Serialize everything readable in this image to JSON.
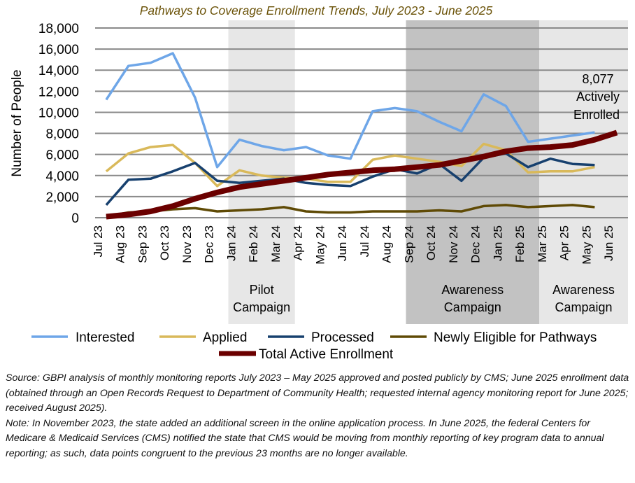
{
  "chart_data": {
    "type": "line",
    "title": "Pathways to Coverage Enrollment Trends, July 2023 - June 2025",
    "xlabel": "",
    "ylabel": "Number of People",
    "ylim": [
      0,
      18000
    ],
    "yticks": [
      0,
      2000,
      4000,
      6000,
      8000,
      10000,
      12000,
      14000,
      16000,
      18000
    ],
    "ytick_labels": [
      "0",
      "2,000",
      "4,000",
      "6,000",
      "8,000",
      "10,000",
      "12,000",
      "14,000",
      "16,000",
      "18,000"
    ],
    "grid": true,
    "categories": [
      "Jul 23",
      "Aug 23",
      "Sep 23",
      "Oct 23",
      "Nov 23",
      "Dec 23",
      "Jan 24",
      "Feb 24",
      "Mar 24",
      "Apr 24",
      "May 24",
      "Jun 24",
      "Jul 24",
      "Aug 24",
      "Sep 24",
      "Oct 24",
      "Nov 24",
      "Dec 24",
      "Jan 25",
      "Feb 25",
      "Mar 25",
      "Apr 25",
      "May 25",
      "Jun 25"
    ],
    "series": [
      {
        "name": "Interested",
        "color": "#6ea6e8",
        "width": "thin",
        "values": [
          11200,
          14400,
          14700,
          15600,
          11400,
          4800,
          7400,
          6800,
          6400,
          6700,
          5900,
          5600,
          10100,
          10400,
          10100,
          9100,
          8200,
          11700,
          10600,
          7200,
          7500,
          7800,
          8100
        ]
      },
      {
        "name": "Applied",
        "color": "#d9b95a",
        "width": "thin",
        "values": [
          4400,
          6100,
          6700,
          6900,
          5200,
          3000,
          4500,
          4000,
          3800,
          3700,
          3400,
          3400,
          5500,
          5900,
          5600,
          5300,
          4900,
          7000,
          6400,
          4300,
          4400,
          4400,
          4800
        ]
      },
      {
        "name": "Processed",
        "color": "#17406e",
        "width": "thin",
        "values": [
          1200,
          3600,
          3700,
          4400,
          5200,
          3500,
          3300,
          3500,
          3700,
          3300,
          3100,
          3000,
          3900,
          4600,
          4200,
          5100,
          3500,
          5700,
          6100,
          4800,
          5600,
          5100,
          5000
        ]
      },
      {
        "name": "Newly Eligible for Pathways",
        "color": "#5f4a05",
        "width": "thin",
        "values": [
          100,
          500,
          600,
          800,
          900,
          600,
          700,
          800,
          1000,
          600,
          500,
          500,
          600,
          600,
          600,
          700,
          600,
          1100,
          1200,
          1000,
          1100,
          1200,
          1000
        ]
      },
      {
        "name": "Total Active Enrollment",
        "color": "#6b0000",
        "width": "thick",
        "values": [
          100,
          300,
          600,
          1100,
          1800,
          2400,
          2900,
          3200,
          3500,
          3800,
          4100,
          4300,
          4500,
          4600,
          4800,
          5000,
          5400,
          5800,
          6300,
          6600,
          6700,
          6900,
          7400,
          8077
        ]
      }
    ],
    "shaded_periods": [
      {
        "label_line1": "Pilot",
        "label_line2": "Campaign",
        "start": "Jan 24",
        "end": "Mar 24",
        "color": "#e7e7e7"
      },
      {
        "label_line1": "Awareness",
        "label_line2": "Campaign",
        "start": "Sep 24",
        "end": "Feb 25",
        "color": "#c2c2c2"
      },
      {
        "label_line1": "Awareness",
        "label_line2": "Campaign",
        "start": "Mar 25",
        "end": "Jun 25",
        "color": "#e7e7e7"
      }
    ],
    "annotation": {
      "value": "8,077",
      "line2": "Actively",
      "line3": "Enrolled",
      "series": "Total Active Enrollment",
      "position": "top-right"
    },
    "legend": {
      "placement": "bottom",
      "entries": [
        "Interested",
        "Applied",
        "Processed",
        "Newly Eligible for Pathways",
        "Total Active Enrollment"
      ]
    }
  },
  "notes": {
    "source": "Source: GBPI analysis of monthly monitoring reports July 2023 – May 2025 approved and posted publicly by CMS; June 2025 enrollment data (obtained through an Open Records Request to Department of Community Health; requested internal agency monitoring report for June 2025; received August 2025).",
    "note": "Note: In November 2023, the state added an additional screen in the online application process. In June 2025, the federal Centers for Medicare & Medicaid Services (CMS) notified the state that CMS would be moving from monthly reporting of key program data to annual reporting; as such, data points congruent to the previous 23 months are no longer available."
  }
}
